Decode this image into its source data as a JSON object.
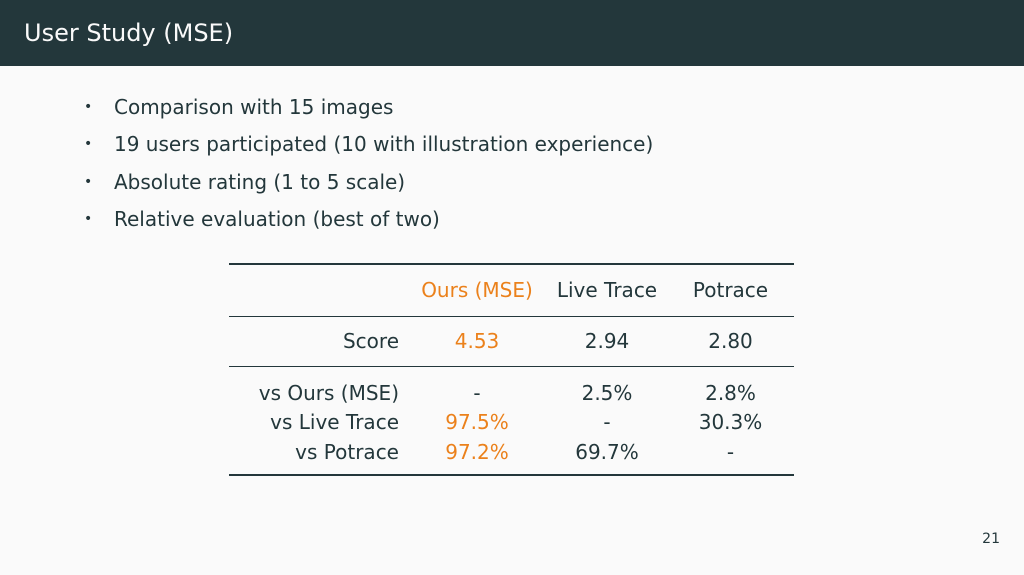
{
  "slide": {
    "title": "User Study (MSE)",
    "page_number": "21",
    "accent_color": "#eb811b",
    "header_color": "#23373b"
  },
  "bullets": [
    "Comparison with 15 images",
    "19 users participated (10 with illustration experience)",
    "Absolute rating (1 to 5 scale)",
    "Relative evaluation (best of two)"
  ],
  "table": {
    "columns": [
      "",
      "Ours (MSE)",
      "Live Trace",
      "Potrace"
    ],
    "score_row": {
      "label": "Score",
      "values": [
        "4.53",
        "2.94",
        "2.80"
      ]
    },
    "pair_rows": [
      {
        "label": "vs Ours (MSE)",
        "values": [
          "-",
          "2.5%",
          "2.8%"
        ]
      },
      {
        "label": "vs Live Trace",
        "values": [
          "97.5%",
          "-",
          "30.3%"
        ]
      },
      {
        "label": "vs Potrace",
        "values": [
          "97.2%",
          "69.7%",
          "-"
        ]
      }
    ]
  }
}
